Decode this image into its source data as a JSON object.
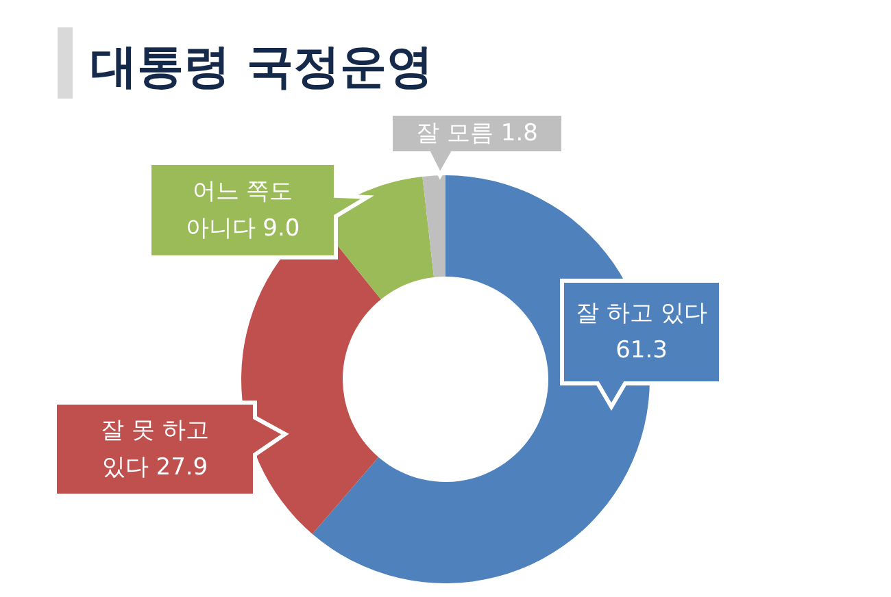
{
  "chart_data": {
    "type": "donut",
    "title": "대통령 국정운영",
    "categories": [
      "잘 하고 있다",
      "잘 못 하고 있다",
      "어느 쪽도 아니다",
      "잘 모름"
    ],
    "values": [
      61.3,
      27.9,
      9.0,
      1.8
    ],
    "value_labels": [
      "61.3",
      "27.9",
      "9.0",
      "1.8"
    ],
    "colors": [
      "#4f81bd",
      "#c0504d",
      "#9bbb59",
      "#bfbfbf"
    ]
  }
}
